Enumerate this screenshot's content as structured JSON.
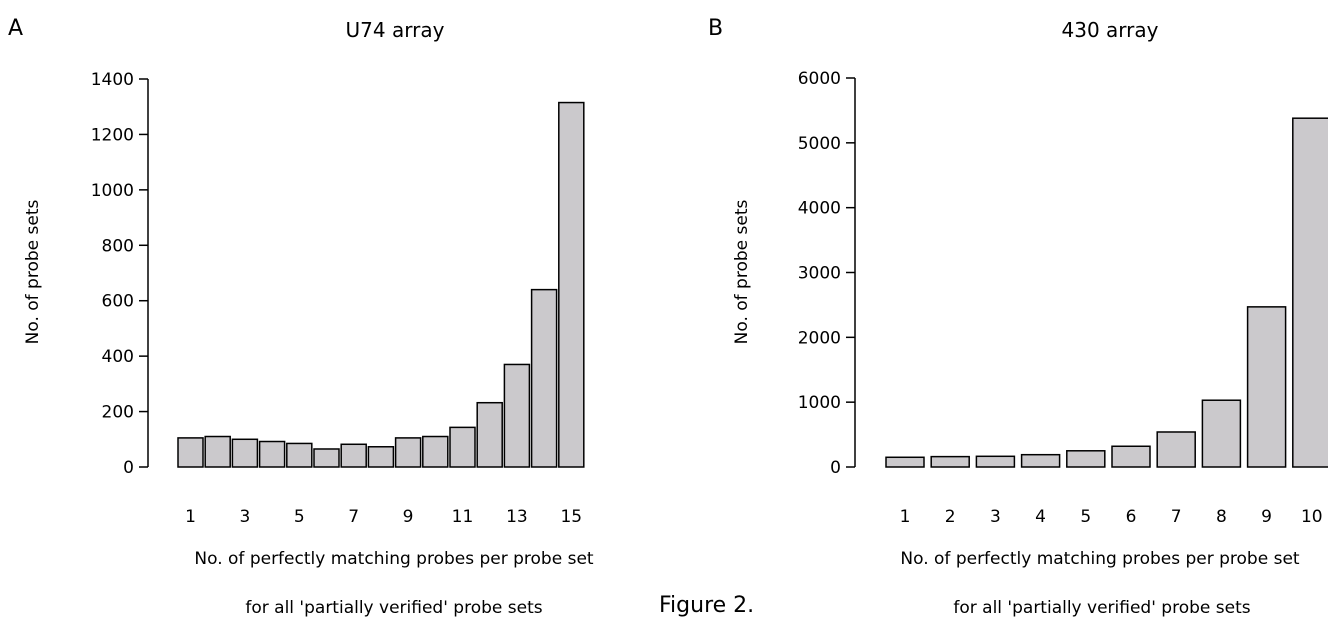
{
  "figure_label": "Figure 2.",
  "colors": {
    "bar_fill": "#cbc9cc",
    "bar_stroke": "#000000",
    "axis": "#000000"
  },
  "chart_data": [
    {
      "panel_label": "A",
      "type": "bar",
      "title": "U74 array",
      "ylabel": "No. of probe sets",
      "xlabel": "No. of perfectly matching probes per probe set",
      "xlabel2": "for all 'partially verified' probe sets",
      "categories": [
        "1",
        "2",
        "3",
        "4",
        "5",
        "6",
        "7",
        "8",
        "9",
        "10",
        "11",
        "12",
        "13",
        "14",
        "15"
      ],
      "tick_labels": [
        "1",
        "3",
        "5",
        "7",
        "9",
        "11",
        "13",
        "15"
      ],
      "values": [
        105,
        110,
        100,
        92,
        85,
        65,
        82,
        73,
        105,
        110,
        143,
        232,
        370,
        640,
        1315
      ],
      "ylim": [
        0,
        1400
      ],
      "yticks": [
        0,
        200,
        400,
        600,
        800,
        1000,
        1200,
        1400
      ],
      "grid": false
    },
    {
      "panel_label": "B",
      "type": "bar",
      "title": "430 array",
      "ylabel": "No. of probe sets",
      "xlabel": "No. of perfectly matching probes per probe set",
      "xlabel2": "for all 'partially verified' probe sets",
      "categories": [
        "1",
        "2",
        "3",
        "4",
        "5",
        "6",
        "7",
        "8",
        "9",
        "10"
      ],
      "tick_labels": [
        "1",
        "2",
        "3",
        "4",
        "5",
        "6",
        "7",
        "8",
        "9",
        "10"
      ],
      "values": [
        150,
        160,
        165,
        190,
        250,
        320,
        540,
        1030,
        2470,
        5380
      ],
      "ylim": [
        0,
        6000
      ],
      "yticks": [
        0,
        1000,
        2000,
        3000,
        4000,
        5000,
        6000
      ],
      "grid": false
    }
  ]
}
